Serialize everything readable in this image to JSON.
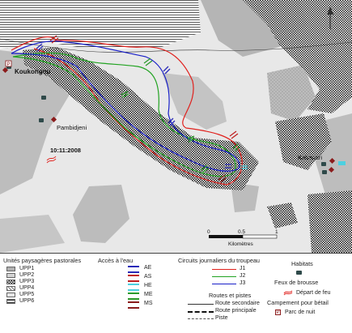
{
  "map": {
    "places": [
      {
        "name": "Koukongou"
      },
      {
        "name": "Pambidjeni"
      },
      {
        "name": "Kabanari"
      }
    ],
    "fire_date": "10:11:2008",
    "scale_bar": {
      "ticks": [
        "0",
        "0.5",
        "1"
      ],
      "unit": "Kilomètres"
    },
    "colors": {
      "upp1": "#b0b0b0",
      "upp2": "#d4d4d4",
      "upp3": "checkered",
      "upp5": "#e6e6e6",
      "upp6": "horizontal-lines",
      "route_J1": "#e0201c",
      "route_J2": "#22a322",
      "route_J3": "#1a20c8"
    }
  },
  "legend": {
    "units": {
      "title": "Unités paysagères pastorales",
      "items": [
        "UPP1",
        "UPP2",
        "UPP3",
        "UPP4",
        "UPP5",
        "UPP6"
      ]
    },
    "water": {
      "title": "Accès à l'eau",
      "items": [
        {
          "label": "AE",
          "color": "#2a2ab8"
        },
        {
          "label": "AS",
          "color": "#c02020"
        },
        {
          "label": "HE",
          "color": "#4dd0e0"
        },
        {
          "label": "ME",
          "color": "#2a9a2a"
        },
        {
          "label": "MS",
          "color": "#8b1c1c"
        }
      ]
    },
    "circuits": {
      "title": "Circuits journaliers du troupeau",
      "items": [
        {
          "label": "J1",
          "color": "#e0201c"
        },
        {
          "label": "J2",
          "color": "#22a322"
        },
        {
          "label": "J3",
          "color": "#1a20c8"
        }
      ]
    },
    "habitats": {
      "title": "Habitats"
    },
    "feux": {
      "title": "Feux de brousse",
      "item": "Départ de feu"
    },
    "routes": {
      "title": "Routes et pistes",
      "items": [
        "Route secondaire",
        "Route principale",
        "Piste"
      ]
    },
    "campement": {
      "title": "Campement pour bétail",
      "item": "Parc de nuit",
      "marker": "P"
    }
  }
}
